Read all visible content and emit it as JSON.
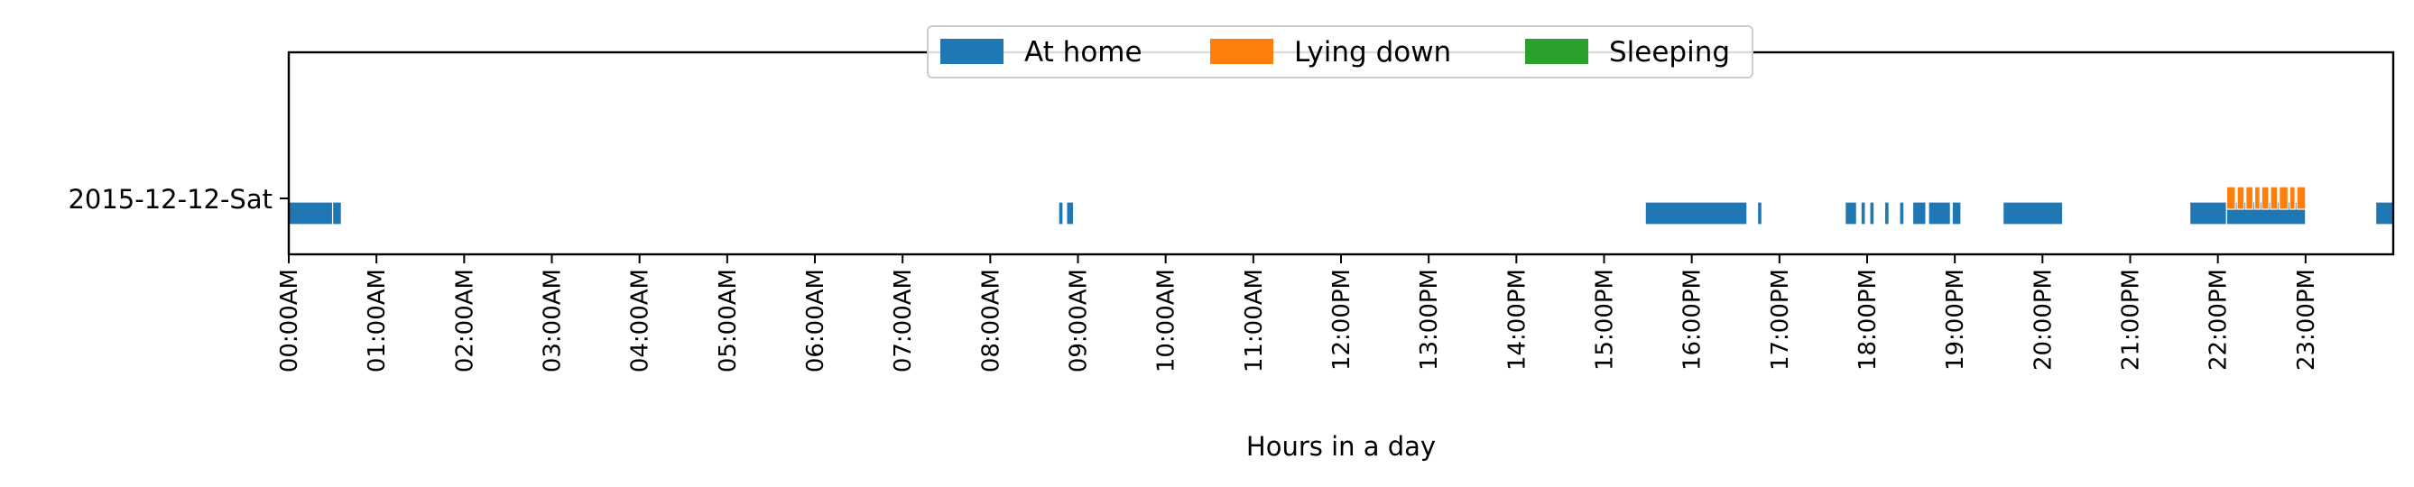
{
  "chart_data": {
    "type": "broken-barh",
    "xlabel": "Hours in a day",
    "xlim": [
      0,
      24
    ],
    "x_ticks": [
      "00:00AM",
      "01:00AM",
      "02:00AM",
      "03:00AM",
      "04:00AM",
      "05:00AM",
      "06:00AM",
      "07:00AM",
      "08:00AM",
      "09:00AM",
      "10:00AM",
      "11:00AM",
      "12:00PM",
      "13:00PM",
      "14:00PM",
      "15:00PM",
      "16:00PM",
      "17:00PM",
      "18:00PM",
      "19:00PM",
      "20:00PM",
      "21:00PM",
      "22:00PM",
      "23:00PM"
    ],
    "y_categories": [
      "2015-12-12-Sat"
    ],
    "grid": false,
    "legend_placement": "upper center",
    "series": [
      {
        "name": "At home",
        "color": "#1f77b4",
        "intervals": [
          [
            0.0,
            0.5
          ],
          [
            0.5,
            0.6
          ],
          [
            8.78,
            8.83
          ],
          [
            8.87,
            8.95
          ],
          [
            15.47,
            16.63
          ],
          [
            16.75,
            16.8
          ],
          [
            17.75,
            17.88
          ],
          [
            17.93,
            17.98
          ],
          [
            18.03,
            18.08
          ],
          [
            18.2,
            18.25
          ],
          [
            18.37,
            18.42
          ],
          [
            18.52,
            18.67
          ],
          [
            18.7,
            18.95
          ],
          [
            18.97,
            19.07
          ],
          [
            19.55,
            20.23
          ],
          [
            21.68,
            22.1
          ],
          [
            22.1,
            23.0
          ],
          [
            23.8,
            24.0
          ]
        ]
      },
      {
        "name": "Lying down",
        "color": "#ff7f0e",
        "intervals": [
          [
            22.1,
            22.2
          ],
          [
            22.22,
            22.3
          ],
          [
            22.32,
            22.4
          ],
          [
            22.42,
            22.48
          ],
          [
            22.5,
            22.58
          ],
          [
            22.6,
            22.68
          ],
          [
            22.7,
            22.8
          ],
          [
            22.82,
            22.88
          ],
          [
            22.9,
            23.0
          ]
        ]
      },
      {
        "name": "Sleeping",
        "color": "#2ca02c",
        "intervals": []
      }
    ]
  }
}
